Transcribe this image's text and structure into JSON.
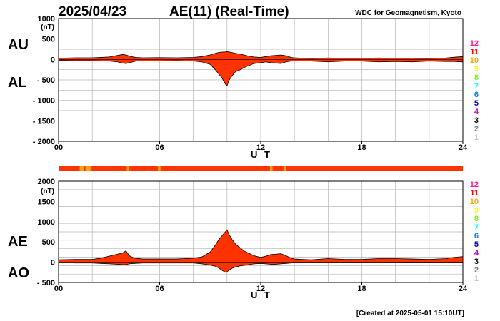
{
  "header": {
    "date": "2025/04/23",
    "title": "AE(11) (Real-Time)",
    "institution": "WDC for Geomagnetism, Kyoto"
  },
  "footer": {
    "created": "[Created at 2025-05-01 15:10UT]"
  },
  "colors": {
    "fill": "#ff3300",
    "outline": "#000000",
    "grid": "#b4b4b4",
    "station_bar": "#ff3300",
    "station_drop": "#ffa500"
  },
  "station_count_legend": [
    {
      "label": "12",
      "color": "#ff1493"
    },
    {
      "label": "11",
      "color": "#ff0000"
    },
    {
      "label": "10",
      "color": "#ffa500"
    },
    {
      "label": "9",
      "color": "#ffff00"
    },
    {
      "label": "8",
      "color": "#66ff00"
    },
    {
      "label": "7",
      "color": "#00ffff"
    },
    {
      "label": "6",
      "color": "#0080ff"
    },
    {
      "label": "5",
      "color": "#0000c8"
    },
    {
      "label": "4",
      "color": "#c800c8"
    },
    {
      "label": "3",
      "color": "#000000"
    },
    {
      "label": "2",
      "color": "#808080"
    },
    {
      "label": "1",
      "color": "#c8c8c8"
    }
  ],
  "station_bar_reduced_intervals_ut": [
    [
      1.25,
      1.5
    ],
    [
      1.6,
      1.9
    ],
    [
      4.05,
      4.2
    ],
    [
      5.9,
      6.05
    ],
    [
      12.55,
      12.7
    ],
    [
      13.35,
      13.5
    ]
  ],
  "chart_data": [
    {
      "type": "area",
      "panel": "upper",
      "series_labels": [
        "AU",
        "AL"
      ],
      "unit": "(nT)",
      "xlabel": "U T",
      "xlim": [
        0,
        24
      ],
      "xticks": [
        "00",
        "06",
        "12",
        "18",
        "24"
      ],
      "ylim": [
        -2000,
        1000
      ],
      "yticks": [
        "1000",
        "500",
        "0",
        "- 500",
        "- 1000",
        "- 1500",
        "- 2000"
      ],
      "grid": true,
      "x": [
        0,
        1,
        2,
        3,
        3.5,
        3.8,
        4,
        4.3,
        4.6,
        5,
        6,
        7,
        8,
        8.5,
        9,
        9.3,
        9.5,
        9.7,
        9.9,
        10,
        10.1,
        10.3,
        10.5,
        10.8,
        11,
        11.3,
        11.6,
        12,
        12.3,
        12.6,
        12.9,
        13.2,
        13.5,
        13.8,
        14,
        14.5,
        15,
        16,
        17,
        18,
        19,
        20,
        21,
        22,
        23,
        23.5,
        24
      ],
      "au": [
        30,
        40,
        40,
        60,
        100,
        120,
        110,
        70,
        50,
        40,
        45,
        40,
        50,
        70,
        110,
        150,
        170,
        180,
        185,
        190,
        185,
        170,
        150,
        130,
        110,
        80,
        60,
        50,
        70,
        90,
        100,
        110,
        90,
        50,
        40,
        30,
        25,
        35,
        30,
        30,
        35,
        30,
        30,
        25,
        35,
        55,
        70
      ],
      "al": [
        -20,
        -30,
        -30,
        -40,
        -60,
        -90,
        -100,
        -70,
        -40,
        -40,
        -35,
        -30,
        -40,
        -60,
        -120,
        -250,
        -350,
        -450,
        -600,
        -650,
        -520,
        -400,
        -300,
        -250,
        -200,
        -150,
        -100,
        -80,
        -60,
        -80,
        -90,
        -100,
        -60,
        -40,
        -40,
        -40,
        -40,
        -60,
        -40,
        -40,
        -60,
        -50,
        -60,
        -40,
        -50,
        -50,
        -60
      ]
    },
    {
      "type": "area",
      "panel": "lower",
      "series_labels": [
        "AE",
        "AO"
      ],
      "unit": "(nT)",
      "xlabel": "U T",
      "xlim": [
        0,
        24
      ],
      "xticks": [
        "00",
        "06",
        "12",
        "18",
        "24"
      ],
      "ylim": [
        -500,
        2000
      ],
      "yticks": [
        "2000",
        "1500",
        "1000",
        "500",
        "0",
        "- 500"
      ],
      "grid": true,
      "x": [
        0,
        1,
        2,
        2.5,
        3,
        3.5,
        3.8,
        4,
        4.2,
        4.5,
        5,
        6,
        7,
        8,
        8.5,
        9,
        9.3,
        9.5,
        9.7,
        9.9,
        10,
        10.1,
        10.3,
        10.5,
        10.8,
        11,
        11.3,
        11.6,
        12,
        12.3,
        12.6,
        12.9,
        13.2,
        13.5,
        13.8,
        14,
        14.5,
        15,
        16,
        17,
        18,
        19,
        20,
        21,
        22,
        23,
        23.5,
        24
      ],
      "ae": [
        60,
        70,
        70,
        100,
        150,
        200,
        230,
        280,
        160,
        100,
        80,
        80,
        80,
        100,
        130,
        250,
        420,
        550,
        650,
        750,
        800,
        700,
        560,
        450,
        350,
        280,
        220,
        160,
        120,
        150,
        190,
        200,
        210,
        160,
        100,
        80,
        70,
        60,
        90,
        70,
        70,
        90,
        90,
        80,
        70,
        90,
        120,
        140
      ],
      "ao": [
        -10,
        -20,
        -20,
        -30,
        -40,
        -50,
        -60,
        -60,
        -40,
        -30,
        -20,
        -20,
        -20,
        -20,
        -40,
        -70,
        -100,
        -140,
        -200,
        -250,
        -240,
        -200,
        -150,
        -120,
        -90,
        -80,
        -60,
        -40,
        -30,
        -40,
        -50,
        -50,
        -40,
        -30,
        -20,
        -10,
        -10,
        -5,
        -10,
        -5,
        -5,
        -10,
        -5,
        0,
        -5,
        -5,
        -5,
        0
      ]
    }
  ]
}
